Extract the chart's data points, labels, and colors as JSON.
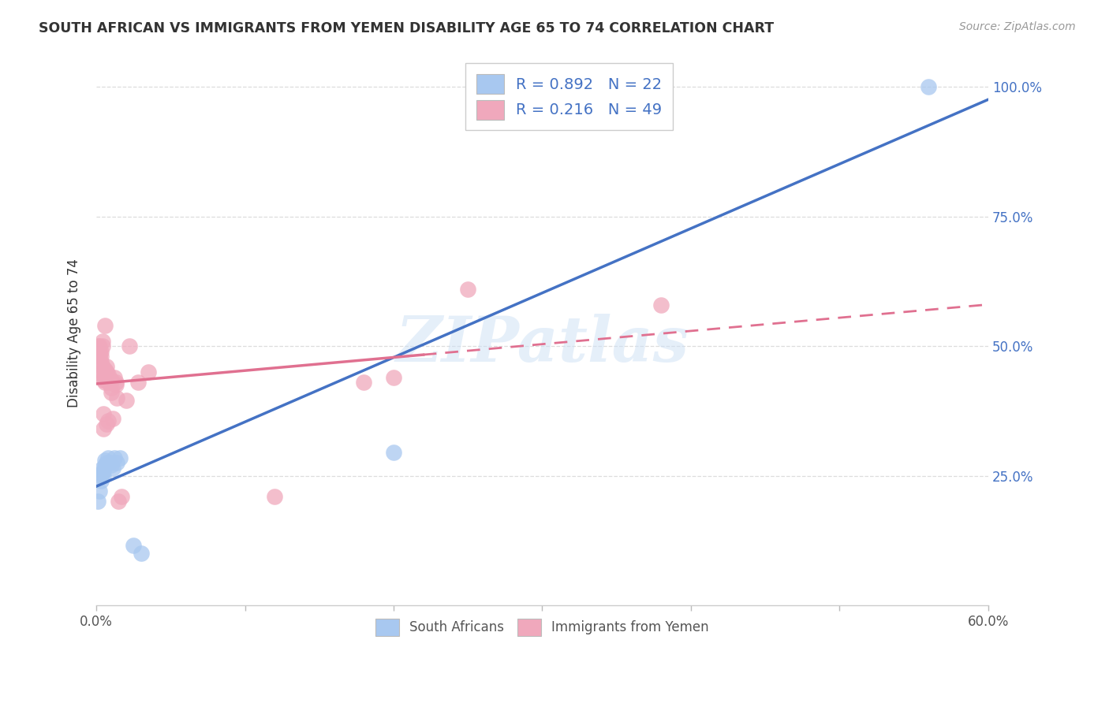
{
  "title": "SOUTH AFRICAN VS IMMIGRANTS FROM YEMEN DISABILITY AGE 65 TO 74 CORRELATION CHART",
  "source": "Source: ZipAtlas.com",
  "ylabel": "Disability Age 65 to 74",
  "legend_sa": "South Africans",
  "legend_yemen": "Immigrants from Yemen",
  "r_sa": "0.892",
  "n_sa": "22",
  "r_yemen": "0.216",
  "n_yemen": "49",
  "sa_color": "#a8c8f0",
  "yemen_color": "#f0a8bc",
  "sa_line_color": "#4472c4",
  "yemen_line_color": "#e07090",
  "watermark_text": "ZIPatlas",
  "sa_x": [
    0.001,
    0.002,
    0.003,
    0.003,
    0.004,
    0.004,
    0.005,
    0.005,
    0.006,
    0.006,
    0.007,
    0.008,
    0.009,
    0.01,
    0.011,
    0.012,
    0.014,
    0.016,
    0.025,
    0.03,
    0.2,
    0.56
  ],
  "sa_y": [
    0.2,
    0.22,
    0.24,
    0.25,
    0.255,
    0.265,
    0.26,
    0.25,
    0.27,
    0.28,
    0.275,
    0.285,
    0.275,
    0.27,
    0.265,
    0.285,
    0.275,
    0.285,
    0.115,
    0.1,
    0.295,
    1.0
  ],
  "yemen_x": [
    0.001,
    0.001,
    0.002,
    0.002,
    0.002,
    0.003,
    0.003,
    0.003,
    0.003,
    0.004,
    0.004,
    0.004,
    0.004,
    0.005,
    0.005,
    0.005,
    0.005,
    0.005,
    0.006,
    0.006,
    0.006,
    0.006,
    0.007,
    0.007,
    0.007,
    0.007,
    0.008,
    0.008,
    0.008,
    0.009,
    0.01,
    0.01,
    0.01,
    0.011,
    0.012,
    0.013,
    0.013,
    0.014,
    0.015,
    0.017,
    0.02,
    0.022,
    0.028,
    0.035,
    0.12,
    0.18,
    0.2,
    0.25,
    0.38
  ],
  "yemen_y": [
    0.49,
    0.5,
    0.48,
    0.49,
    0.5,
    0.49,
    0.48,
    0.47,
    0.46,
    0.46,
    0.5,
    0.51,
    0.45,
    0.37,
    0.34,
    0.44,
    0.435,
    0.445,
    0.44,
    0.54,
    0.43,
    0.455,
    0.46,
    0.45,
    0.445,
    0.35,
    0.445,
    0.355,
    0.43,
    0.435,
    0.435,
    0.42,
    0.41,
    0.36,
    0.44,
    0.43,
    0.425,
    0.4,
    0.2,
    0.21,
    0.395,
    0.5,
    0.43,
    0.45,
    0.21,
    0.43,
    0.44,
    0.61,
    0.58
  ],
  "xlim": [
    0.0,
    0.6
  ],
  "ylim": [
    0.0,
    1.05
  ],
  "bg_color": "#ffffff",
  "grid_color": "#dddddd",
  "xtick_positions": [
    0.0,
    0.1,
    0.2,
    0.3,
    0.4,
    0.5,
    0.6
  ],
  "ytick_positions": [
    0.25,
    0.5,
    0.75,
    1.0
  ]
}
